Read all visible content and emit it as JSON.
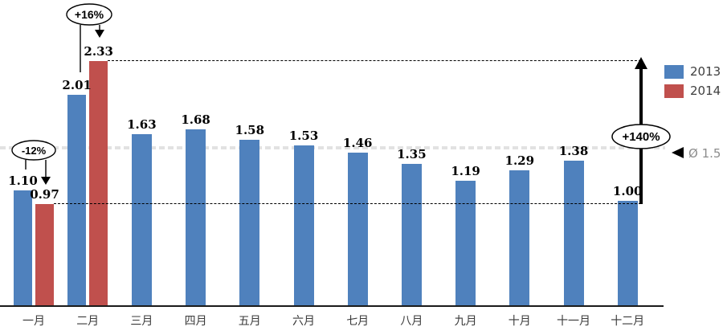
{
  "chart_data": {
    "type": "bar",
    "title": "",
    "xlabel": "",
    "ylabel": "",
    "ylim": [
      0,
      2.9
    ],
    "grid": false,
    "legend_position": "top-right",
    "categories": [
      "一月",
      "二月",
      "三月",
      "四月",
      "五月",
      "六月",
      "七月",
      "八月",
      "九月",
      "十月",
      "十一月",
      "十二月"
    ],
    "series": [
      {
        "name": "2013",
        "color": "#4f81bd",
        "values": [
          1.1,
          2.01,
          1.63,
          1.68,
          1.58,
          1.53,
          1.46,
          1.35,
          1.19,
          1.29,
          1.38,
          1.0
        ],
        "labels": [
          "1.10",
          "2.01",
          "1.63",
          "1.68",
          "1.58",
          "1.53",
          "1.46",
          "1.35",
          "1.19",
          "1.29",
          "1.38",
          "1.00"
        ]
      },
      {
        "name": "2014",
        "color": "#c0504d",
        "values": [
          0.97,
          2.33,
          null,
          null,
          null,
          null,
          null,
          null,
          null,
          null,
          null,
          null
        ],
        "labels": [
          "0.97",
          "2.33",
          null,
          null,
          null,
          null,
          null,
          null,
          null,
          null,
          null,
          null
        ]
      }
    ],
    "legend": [
      {
        "label": "2013",
        "color": "#4f81bd"
      },
      {
        "label": "2014",
        "color": "#c0504d"
      }
    ],
    "reference_lines": [
      {
        "value": 0.97,
        "style": "dashed-black"
      },
      {
        "value": 2.33,
        "style": "dashed-black"
      },
      {
        "value": 1.5,
        "style": "faint-gray",
        "label": "Ø 1.5"
      }
    ],
    "annotations": [
      {
        "id": "jan-change",
        "text": "-12%",
        "shape": "ellipse-callout",
        "target": "一月 2014"
      },
      {
        "id": "feb-change",
        "text": "+16%",
        "shape": "ellipse-callout",
        "target": "二月 2014"
      },
      {
        "id": "total-change",
        "text": "+140%",
        "shape": "ellipse-on-arrow",
        "from_value": 0.97,
        "to_value": 2.33
      },
      {
        "id": "average-marker",
        "text": "Ø 1.5",
        "shape": "left-triangle-marker",
        "value": 1.5
      }
    ]
  },
  "colors": {
    "bar_2013": "#4f81bd",
    "bar_2014": "#c0504d",
    "annotation_line": "#000000",
    "average_text": "#8c8c8c",
    "month_label": "#3a3a3a",
    "legend_text": "#3f3f3f"
  }
}
